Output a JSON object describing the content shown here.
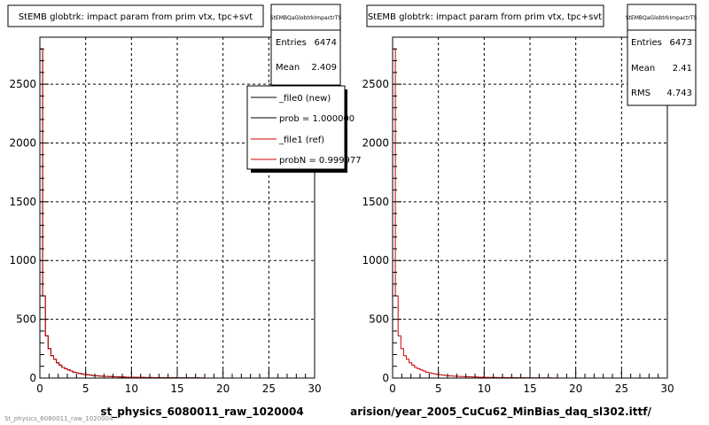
{
  "chart_data": [
    {
      "type": "histogram",
      "title": "StEMB globtrk: impact param from prim vtx, tpc+svt",
      "xlabel": "st_physics_6080011_raw_1020004",
      "xlim": [
        0,
        30
      ],
      "ylim": [
        0,
        2900
      ],
      "x_ticks": [
        "0",
        "5",
        "10",
        "15",
        "20",
        "25",
        "30"
      ],
      "y_ticks": [
        "0",
        "500",
        "1000",
        "1500",
        "2000",
        "2500"
      ],
      "grid": true,
      "bin_width": 0.3,
      "series": [
        {
          "name": "_file0 (new)",
          "color": "#000000",
          "values": [
            2800,
            700,
            360,
            250,
            190,
            160,
            130,
            110,
            90,
            80,
            70,
            60,
            50,
            45,
            40,
            35,
            30,
            28,
            25,
            22,
            20,
            18,
            16,
            15,
            14,
            13,
            12,
            11,
            10,
            9,
            9,
            8,
            8,
            7,
            7,
            6,
            6,
            6,
            5,
            5,
            5,
            4,
            4,
            4,
            4,
            3,
            3,
            3,
            3,
            3,
            2,
            2,
            2,
            2,
            2,
            2,
            2,
            2,
            1,
            1
          ]
        },
        {
          "name": "_file1 (ref)",
          "color": "#cc0000",
          "values": [
            2800,
            700,
            360,
            250,
            190,
            160,
            130,
            110,
            90,
            80,
            70,
            60,
            50,
            45,
            40,
            35,
            30,
            28,
            25,
            22,
            20,
            18,
            16,
            15,
            14,
            13,
            12,
            11,
            10,
            9,
            9,
            8,
            8,
            7,
            7,
            6,
            6,
            6,
            5,
            5,
            5,
            4,
            4,
            4,
            4,
            3,
            3,
            3,
            3,
            3,
            2,
            2,
            2,
            2,
            2,
            2,
            2,
            2,
            1,
            1
          ]
        }
      ],
      "stats": {
        "name": "StEMBQaGlobtrkImpactrTS",
        "rows": [
          {
            "label": "Entries",
            "value": "6474"
          },
          {
            "label": "Mean",
            "value": "2.409"
          }
        ]
      },
      "legend": {
        "position": "top-right",
        "entries": [
          {
            "label": "_file0 (new)",
            "color": "#000000"
          },
          {
            "label": "prob = 1.000000",
            "color": "#000000"
          },
          {
            "label": "_file1 (ref)",
            "color": "#cc0000"
          },
          {
            "label": "probN = 0.999977",
            "color": "#cc0000"
          }
        ]
      },
      "footer": "St_physics_6080011_raw_1020004"
    },
    {
      "type": "histogram",
      "title": "StEMB globtrk: impact param from prim vtx, tpc+svt",
      "xlabel": "arision/year_2005_CuCu62_MinBias_daq_sl302.ittf/",
      "xlim": [
        0,
        30
      ],
      "ylim": [
        0,
        2900
      ],
      "x_ticks": [
        "0",
        "5",
        "10",
        "15",
        "20",
        "25",
        "30"
      ],
      "y_ticks": [
        "0",
        "500",
        "1000",
        "1500",
        "2000",
        "2500"
      ],
      "grid": true,
      "bin_width": 0.3,
      "series": [
        {
          "name": "",
          "color": "#cc0000",
          "values": [
            2800,
            700,
            360,
            250,
            190,
            160,
            130,
            110,
            90,
            80,
            70,
            60,
            50,
            45,
            40,
            35,
            30,
            28,
            25,
            22,
            20,
            18,
            16,
            15,
            14,
            13,
            12,
            11,
            10,
            9,
            9,
            8,
            8,
            7,
            7,
            6,
            6,
            6,
            5,
            5,
            5,
            4,
            4,
            4,
            4,
            3,
            3,
            3,
            3,
            3,
            2,
            2,
            2,
            2,
            2,
            2,
            2,
            2,
            1,
            1
          ]
        }
      ],
      "stats": {
        "name": "StEMBQaGlobtrkImpactrTS",
        "rows": [
          {
            "label": "Entries",
            "value": "6473"
          },
          {
            "label": "Mean",
            "value": "2.41"
          },
          {
            "label": "RMS",
            "value": "4.743"
          }
        ]
      },
      "legend": null,
      "footer": ""
    }
  ]
}
